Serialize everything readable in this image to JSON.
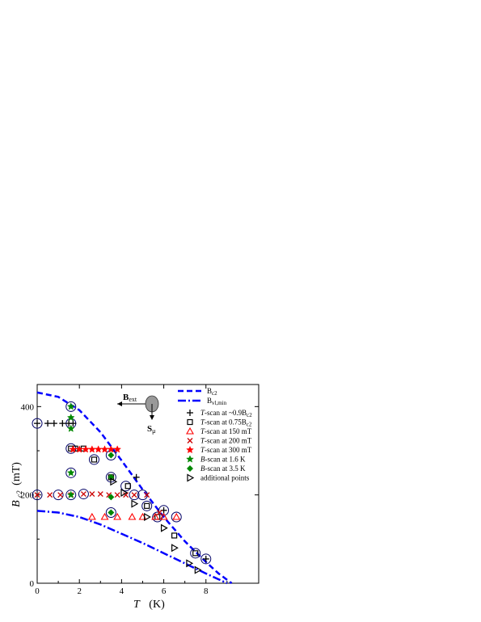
{
  "chart_data": {
    "type": "scatter",
    "xlabel_symbol": "T",
    "xlabel_unit": "(K)",
    "ylabel_symbol": "B",
    "ylabel_sub": "c2",
    "ylabel_unit": "(mT)",
    "xlim": [
      0,
      10.5
    ],
    "ylim": [
      0,
      450
    ],
    "xticks": [
      0,
      2,
      4,
      6,
      8
    ],
    "yticks": [
      0,
      200,
      400
    ],
    "grid": false,
    "legend_position": "top-right",
    "curves": [
      {
        "name": "B",
        "sub": "c2",
        "style": "dash",
        "color": "#0000ff",
        "x": [
          0,
          1,
          2,
          3,
          4,
          5,
          6,
          7,
          8,
          8.6,
          9.22
        ],
        "y": [
          432,
          422,
          392,
          342,
          278,
          212,
          150,
          95,
          48,
          22,
          0
        ]
      },
      {
        "name": "B",
        "sub": "vl,min",
        "style": "dashdot",
        "color": "#0000ff",
        "x": [
          0,
          1,
          2,
          3,
          4,
          5,
          6,
          7,
          8,
          8.5,
          9.0
        ],
        "y": [
          164,
          160,
          150,
          133,
          112,
          91,
          68,
          45,
          22,
          11,
          0
        ]
      }
    ],
    "series": [
      {
        "name": "T-scan at ~0.9B",
        "sub": "c2",
        "marker": "plus",
        "color": "#000000",
        "x": [
          0.0,
          0.5,
          0.8,
          1.2,
          1.5,
          1.7,
          4.7,
          6.0,
          8.0
        ],
        "y": [
          362,
          362,
          362,
          362,
          362,
          362,
          240,
          165,
          55
        ]
      },
      {
        "name": "T-scan at 0.75B",
        "sub": "c2",
        "marker": "square",
        "color": "#000000",
        "x": [
          1.6,
          1.8,
          2.2,
          2.7,
          3.5,
          4.3,
          5.2,
          5.7,
          6.5,
          7.5
        ],
        "y": [
          305,
          305,
          305,
          280,
          240,
          220,
          175,
          150,
          108,
          68
        ]
      },
      {
        "name": "T-scan at 150 mT",
        "marker": "triangle",
        "color": "#ff0000",
        "x": [
          2.6,
          3.2,
          3.8,
          4.5,
          5.0,
          5.6,
          6.0,
          6.6
        ],
        "y": [
          150,
          150,
          150,
          150,
          150,
          150,
          150,
          150
        ]
      },
      {
        "name": "T-scan at 200 mT",
        "marker": "x",
        "color": "#cc0000",
        "x": [
          0.0,
          0.6,
          1.1,
          1.6,
          2.2,
          2.6,
          3.0,
          3.4,
          3.8,
          4.2,
          4.6,
          5.2,
          5.8
        ],
        "y": [
          200,
          200,
          200,
          200,
          202,
          202,
          202,
          200,
          200,
          200,
          200,
          200,
          160
        ]
      },
      {
        "name": "T-scan at 300 mT",
        "marker": "star",
        "color": "#ff0000",
        "x": [
          1.7,
          2.0,
          2.3,
          2.6,
          2.9,
          3.2,
          3.5,
          3.8
        ],
        "y": [
          303,
          303,
          303,
          303,
          303,
          303,
          303,
          303
        ]
      },
      {
        "name": "B-scan at 1.6 K",
        "marker": "star",
        "color": "#008800",
        "x": [
          1.6,
          1.6,
          1.6,
          1.6,
          1.6
        ],
        "y": [
          400,
          375,
          350,
          250,
          200
        ]
      },
      {
        "name": "B-scan at 3.5 K",
        "marker": "diamond",
        "color": "#008800",
        "x": [
          3.5,
          3.5,
          3.5,
          3.5
        ],
        "y": [
          290,
          240,
          195,
          160
        ]
      },
      {
        "name": "additional points",
        "marker": "triangle-right",
        "color": "#000000",
        "x": [
          3.6,
          4.1,
          4.6,
          5.2,
          6.0,
          6.5,
          7.2,
          7.6
        ],
        "y": [
          230,
          205,
          180,
          150,
          125,
          80,
          45,
          30
        ]
      }
    ],
    "circled": [
      [
        0.0,
        362
      ],
      [
        1.6,
        362
      ],
      [
        1.6,
        305
      ],
      [
        1.6,
        400
      ],
      [
        1.6,
        250
      ],
      [
        1.6,
        200
      ],
      [
        0.0,
        200
      ],
      [
        1.0,
        200
      ],
      [
        2.2,
        202
      ],
      [
        3.5,
        290
      ],
      [
        3.5,
        240
      ],
      [
        4.2,
        220
      ],
      [
        4.6,
        200
      ],
      [
        5.0,
        200
      ],
      [
        5.2,
        175
      ],
      [
        5.7,
        150
      ],
      [
        6.0,
        165
      ],
      [
        6.6,
        150
      ],
      [
        8.0,
        55
      ],
      [
        7.5,
        68
      ],
      [
        3.5,
        160
      ],
      [
        2.7,
        280
      ]
    ]
  },
  "inset": {
    "bext_main": "B",
    "bext_sub": "ext",
    "smu_main": "S",
    "smu_sub": "μ"
  }
}
